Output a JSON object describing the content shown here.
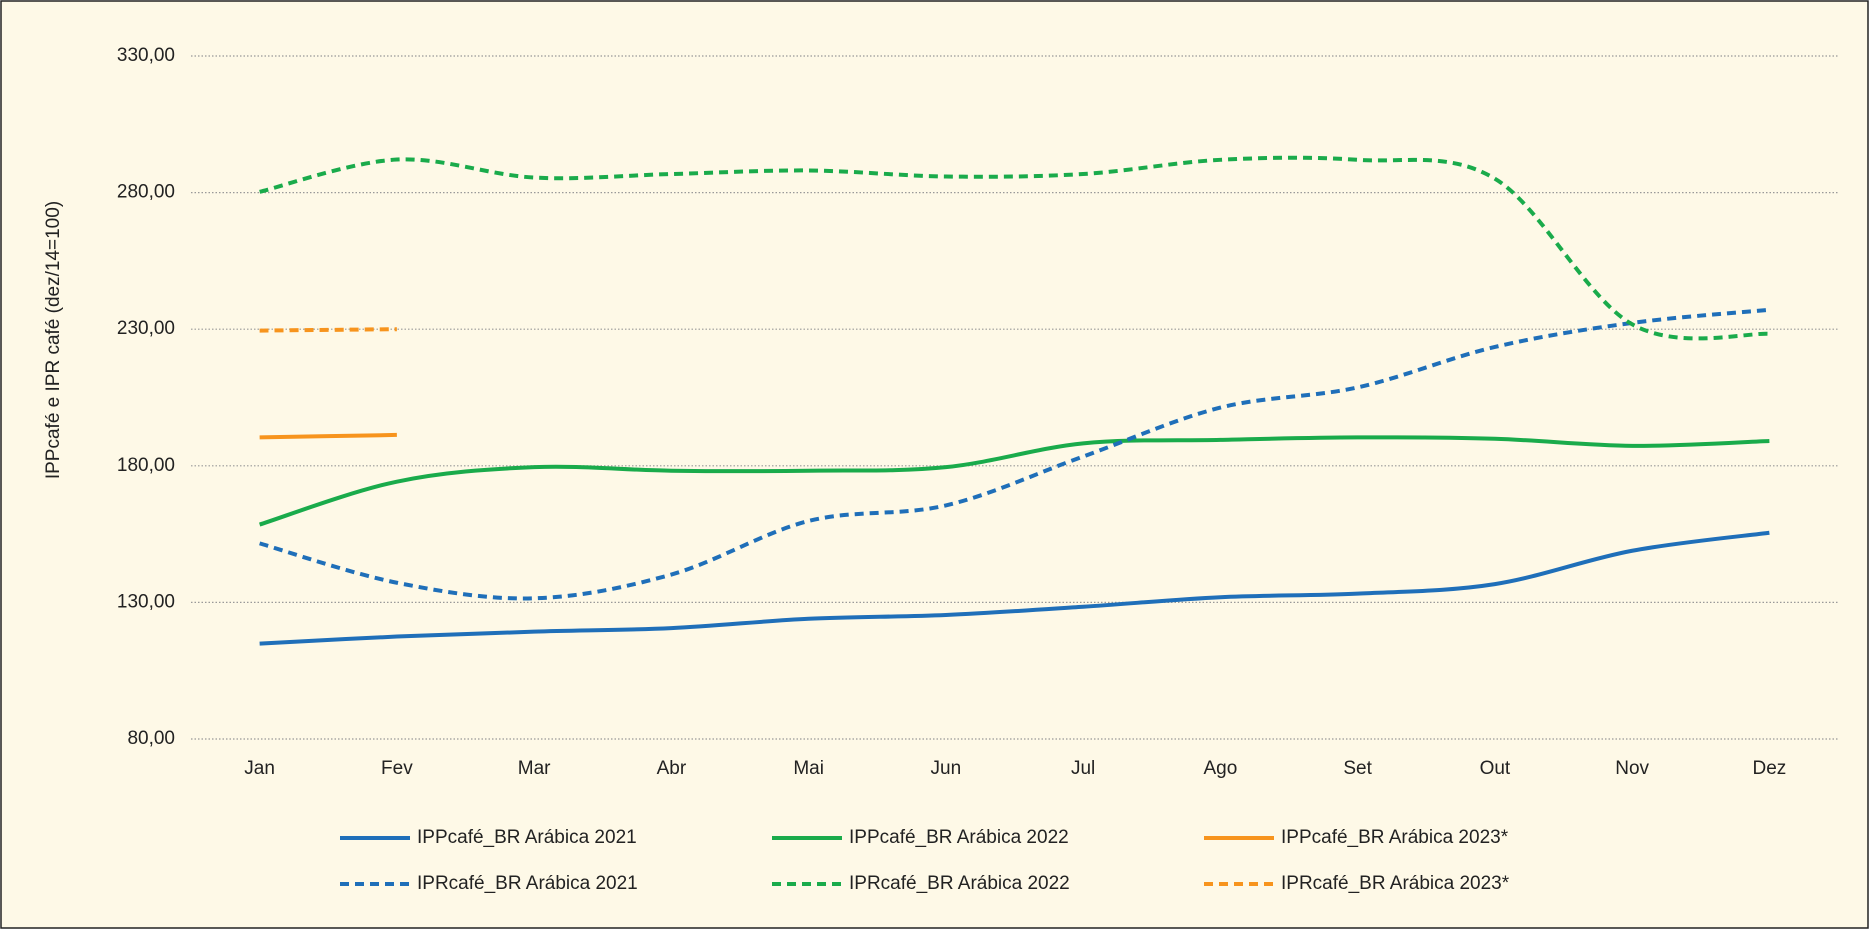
{
  "chart_data": {
    "type": "line",
    "y_label": "IPPcafé e IPR café (dez/14=100)",
    "categories": [
      "Jan",
      "Fev",
      "Mar",
      "Abr",
      "Mai",
      "Jun",
      "Jul",
      "Ago",
      "Set",
      "Out",
      "Nov",
      "Dez"
    ],
    "ylim": [
      80,
      330
    ],
    "yticks": [
      {
        "value": 80,
        "label": "80,00"
      },
      {
        "value": 130,
        "label": "130,00"
      },
      {
        "value": 180,
        "label": "180,00"
      },
      {
        "value": 230,
        "label": "230,00"
      },
      {
        "value": 280,
        "label": "280,00"
      },
      {
        "value": 330,
        "label": "330,00"
      }
    ],
    "grid": true,
    "smooth": true,
    "legend": "bottom",
    "series": [
      {
        "name": "IPPcafé_BR Arábica 2021",
        "color": "#1f6fb9",
        "dashed": false,
        "values": [
          114.9,
          117.5,
          119.3,
          120.6,
          124.0,
          125.4,
          128.4,
          131.9,
          133.2,
          136.7,
          148.9,
          155.5
        ]
      },
      {
        "name": "IPPcafé_BR Arábica 2022",
        "color": "#1aab4b",
        "dashed": false,
        "values": [
          158.5,
          174.2,
          179.5,
          178.2,
          178.2,
          179.5,
          188.2,
          189.5,
          190.4,
          189.9,
          187.3,
          189.1
        ]
      },
      {
        "name": "IPPcafé_BR Arábica 2023*",
        "color": "#f7941d",
        "dashed": false,
        "values": [
          190.4,
          191.3,
          null,
          null,
          null,
          null,
          null,
          null,
          null,
          null,
          null,
          null
        ]
      },
      {
        "name": "IPRcafé_BR Arábica 2021",
        "color": "#1f6fb9",
        "dashed": true,
        "values": [
          151.6,
          137.2,
          131.5,
          140.2,
          159.8,
          165.5,
          183.4,
          201.3,
          208.7,
          223.5,
          232.3,
          237.1
        ]
      },
      {
        "name": "IPRcafé_BR Arábica 2022",
        "color": "#1aab4b",
        "dashed": true,
        "values": [
          280.3,
          292.1,
          285.5,
          286.8,
          288.1,
          285.9,
          286.8,
          292.0,
          292.0,
          285.1,
          231.8,
          228.3
        ]
      },
      {
        "name": "IPRcafé_BR Arábica 2023*",
        "color": "#f7941d",
        "dashed": true,
        "values": [
          229.5,
          230.0,
          null,
          null,
          null,
          null,
          null,
          null,
          null,
          null,
          null,
          null
        ]
      }
    ]
  }
}
